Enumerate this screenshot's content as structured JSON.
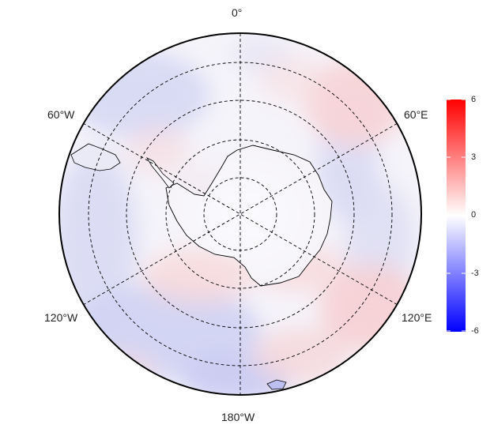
{
  "map": {
    "projection": "south-polar-stereographic",
    "longitude_labels": {
      "top": "0°",
      "upper_left": "60°W",
      "upper_right": "60°E",
      "lower_left": "120°W",
      "lower_right": "120°E",
      "bottom": "180°W"
    },
    "graticule": "dashed",
    "coastline_color": "#000000"
  },
  "colorbar": {
    "ticks": [
      "6",
      "3",
      "0",
      "-3",
      "-6"
    ],
    "max": 6,
    "min": -6,
    "colors": {
      "high": "#ff0000",
      "mid": "#ffffff",
      "low": "#0000ff"
    }
  }
}
